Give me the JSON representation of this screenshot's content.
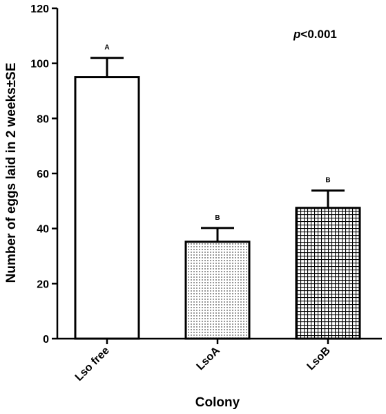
{
  "chart_data": {
    "type": "bar",
    "categories": [
      "Lso free",
      "LsoA",
      "LsoB"
    ],
    "values": [
      95,
      35.2,
      47.5
    ],
    "errors": [
      7,
      5,
      6.3
    ],
    "significance_letters": [
      "A",
      "B",
      "B"
    ],
    "patterns": [
      "none",
      "dots",
      "grid"
    ],
    "xlabel": "Colony",
    "ylabel": "Number of eggs laid in 2 weeks±SE",
    "ylim": [
      0,
      120
    ],
    "yticks": [
      0,
      20,
      40,
      60,
      80,
      100,
      120
    ],
    "annotation": {
      "italic": "p",
      "rest": "<0.001"
    },
    "grid": false,
    "colors": {
      "bar_fill": "#ffffff",
      "bar_stroke": "#000000"
    }
  }
}
